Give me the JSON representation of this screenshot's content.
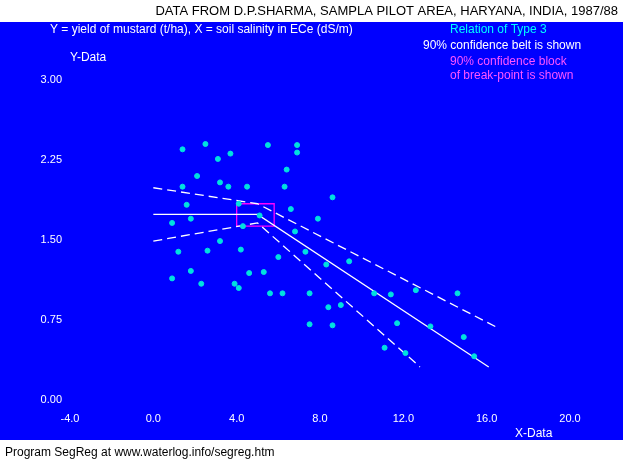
{
  "chart_data": {
    "type": "scatter",
    "title": "DATA FROM D.P.SHARMA, SAMPLA PILOT AREA, HARYANA, INDIA, 1987/88",
    "subtitle": "Y = yield of mustard (t/ha), X = soil salinity in ECe (dS/m)",
    "x_label": "X-Data",
    "y_label": "Y-Data",
    "footer": "Program SegReg at www.waterlog.info/segreg.htm",
    "x": [
      1.4,
      2.5,
      3.7,
      3.1,
      5.5,
      6.9,
      6.9,
      2.1,
      3.2,
      1.4,
      3.6,
      4.5,
      6.3,
      6.4,
      8.6,
      1.6,
      4.1,
      6.6,
      5.1,
      0.9,
      1.8,
      7.9,
      6.8,
      4.3,
      3.2,
      1.2,
      2.6,
      4.2,
      6.0,
      7.3,
      9.4,
      8.3,
      1.8,
      4.6,
      5.3,
      0.9,
      2.3,
      3.9,
      4.1,
      5.6,
      6.2,
      7.5,
      10.6,
      11.4,
      12.6,
      14.6,
      8.4,
      9.0,
      11.7,
      7.5,
      8.6,
      13.3,
      14.9,
      11.1,
      12.1,
      15.4
    ],
    "values": [
      2.35,
      2.4,
      2.31,
      2.26,
      2.39,
      2.39,
      2.32,
      2.1,
      2.04,
      2.0,
      2.0,
      2.0,
      2.0,
      2.16,
      1.9,
      1.83,
      1.84,
      1.79,
      1.73,
      1.66,
      1.7,
      1.7,
      1.58,
      1.63,
      1.49,
      1.39,
      1.4,
      1.41,
      1.34,
      1.39,
      1.3,
      1.27,
      1.21,
      1.19,
      1.2,
      1.14,
      1.09,
      1.09,
      1.05,
      1.0,
      1.0,
      1.0,
      1.0,
      0.99,
      1.03,
      1.0,
      0.87,
      0.89,
      0.72,
      0.71,
      0.7,
      0.69,
      0.59,
      0.49,
      0.44,
      0.41
    ],
    "color": "#00e0e0",
    "marker": "circle",
    "series": [
      {
        "type": "line",
        "line_style": "solid",
        "color": "#ffffff",
        "x": [
          0,
          5.0,
          16.1
        ],
        "values": [
          1.74,
          1.74,
          0.31
        ]
      },
      {
        "type": "line",
        "line_style": "dashed",
        "color": "#ffffff",
        "x": [
          0,
          5.0,
          16.6
        ],
        "values": [
          1.99,
          1.84,
          0.67
        ]
      },
      {
        "type": "line",
        "line_style": "dashed",
        "color": "#ffffff",
        "x": [
          0,
          5.0,
          12.8
        ],
        "values": [
          1.49,
          1.66,
          0.31
        ]
      }
    ],
    "break_block": {
      "color": "#ff00ff",
      "x": [
        4.0,
        5.8
      ],
      "values": [
        1.63,
        1.84
      ]
    },
    "annotations": [
      {
        "text": "Relation of Type 3",
        "color": "#00ffff"
      },
      {
        "text": "90% confidence belt is shown",
        "color": "#ffffff"
      },
      {
        "text": "90% confidence block",
        "color": "#ff55ff"
      },
      {
        "text": "of break-point is shown",
        "color": "#ff55ff"
      }
    ],
    "xlim": [
      -4,
      20
    ],
    "xticks": [
      {
        "value": -4,
        "label": "-4.0"
      },
      {
        "value": 0,
        "label": "0.0"
      },
      {
        "value": 4,
        "label": "4.0"
      },
      {
        "value": 8,
        "label": "8.0"
      },
      {
        "value": 12,
        "label": "12.0"
      },
      {
        "value": 16,
        "label": "16.0"
      },
      {
        "value": 20,
        "label": "20.0"
      }
    ],
    "ylim": [
      0,
      3
    ],
    "yticks": [
      {
        "value": 0,
        "label": "0.00"
      },
      {
        "value": 0.75,
        "label": "0.75"
      },
      {
        "value": 1.5,
        "label": "1.50"
      },
      {
        "value": 2.25,
        "label": "2.25"
      },
      {
        "value": 3,
        "label": "3.00"
      }
    ],
    "grid": false
  }
}
